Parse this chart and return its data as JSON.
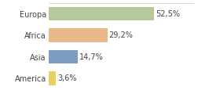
{
  "categories": [
    "Europa",
    "Africa",
    "Asia",
    "America"
  ],
  "values": [
    52.5,
    29.2,
    14.7,
    3.6
  ],
  "labels": [
    "52,5%",
    "29,2%",
    "14,7%",
    "3,6%"
  ],
  "bar_colors": [
    "#b5c99a",
    "#e8b98a",
    "#7b9cbf",
    "#e8d060"
  ],
  "background_color": "#ffffff",
  "xlim": [
    0,
    72
  ],
  "label_fontsize": 7.0,
  "category_fontsize": 7.0,
  "bar_height": 0.65
}
